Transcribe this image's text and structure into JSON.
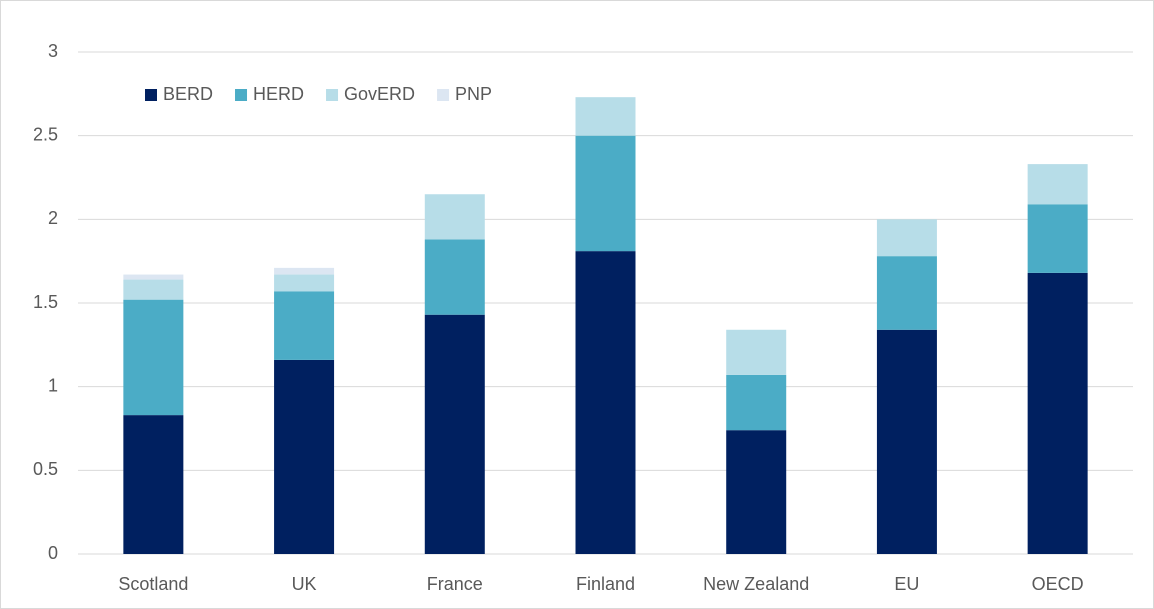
{
  "chart_data": {
    "type": "stacked_bar",
    "categories": [
      "Scotland",
      "UK",
      "France",
      "Finland",
      "New Zealand",
      "EU",
      "OECD"
    ],
    "series": [
      {
        "name": "BERD",
        "color": "#002060",
        "values": [
          0.83,
          1.16,
          1.43,
          1.81,
          0.74,
          1.34,
          1.68
        ]
      },
      {
        "name": "HERD",
        "color": "#4bacc6",
        "values": [
          0.69,
          0.41,
          0.45,
          0.69,
          0.33,
          0.44,
          0.41
        ]
      },
      {
        "name": "GovERD",
        "color": "#b7dde8",
        "values": [
          0.12,
          0.1,
          0.27,
          0.23,
          0.27,
          0.22,
          0.24
        ]
      },
      {
        "name": "PNP",
        "color": "#dce6f2",
        "values": [
          0.03,
          0.04,
          0,
          0,
          0,
          0,
          0
        ]
      }
    ],
    "ylim": [
      0,
      3
    ],
    "yticks": [
      0,
      0.5,
      1,
      1.5,
      2,
      2.5,
      3
    ],
    "grid": true,
    "legend": "top-left"
  }
}
